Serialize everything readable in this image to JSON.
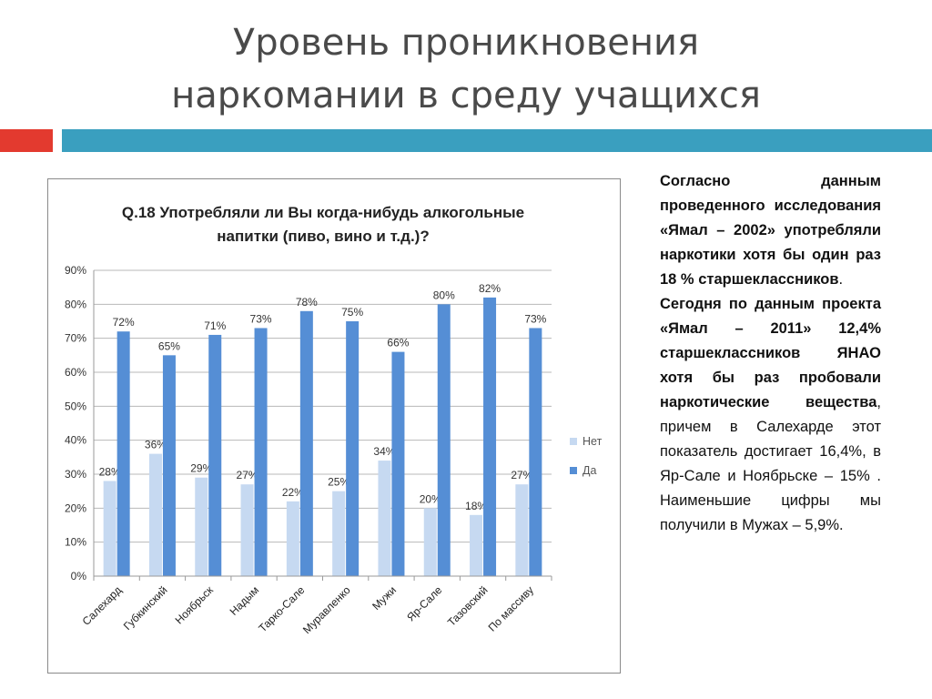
{
  "slide": {
    "title_line1": "Уровень проникновения",
    "title_line2": "наркомании в среду учащихся"
  },
  "colors": {
    "accent_red": "#e33a2f",
    "accent_blue": "#3a9fbf",
    "net": "#c6d9f1",
    "da": "#558ed5"
  },
  "side_text": {
    "p1": "Согласно данным проведенного исследования «Ямал – 2002» употребляли наркотики хотя бы один раз 18 % старшеклассников",
    "p1_end": ".",
    "p2_bold": "Сегодня по данным проекта «Ямал – 2011» 12,4% старшеклассников ЯНАО хотя бы раз пробовали наркотические вещества",
    "p2_rest": ", причем в Салехарде этот показатель достигает 16,4%, в Яр-Сале и Ноябрьске – 15% . Наименьшие цифры мы получили в Мужах – 5,9%."
  },
  "chart_data": {
    "type": "bar",
    "title": "Q.18 Употребляли ли Вы когда-нибудь алкогольные напитки (пиво, вино и т.д.)?",
    "categories": [
      "Салехард",
      "Губкинский",
      "Ноябрьск",
      "Надым",
      "Тарко-Сале",
      "Муравленко",
      "Мужи",
      "Яр-Сале",
      "Тазовский",
      "По массиву"
    ],
    "series": [
      {
        "name": "Нет",
        "values": [
          28,
          36,
          29,
          27,
          22,
          25,
          34,
          20,
          18,
          27
        ],
        "labels": [
          "28%",
          "36%",
          "29%",
          "27%",
          "22%",
          "25%",
          "34%",
          "20%",
          "18%",
          "27%"
        ],
        "color": "#c6d9f1"
      },
      {
        "name": "Да",
        "values": [
          72,
          65,
          71,
          73,
          78,
          75,
          66,
          80,
          82,
          73
        ],
        "labels": [
          "72%",
          "65%",
          "71%",
          "73%",
          "78%",
          "75%",
          "66%",
          "80%",
          "82%",
          "73%"
        ],
        "color": "#558ed5"
      }
    ],
    "yticks": [
      "0%",
      "10%",
      "20%",
      "30%",
      "40%",
      "50%",
      "60%",
      "70%",
      "80%",
      "90%"
    ],
    "ylim": [
      0,
      90
    ],
    "grid": true,
    "legend": "right"
  }
}
